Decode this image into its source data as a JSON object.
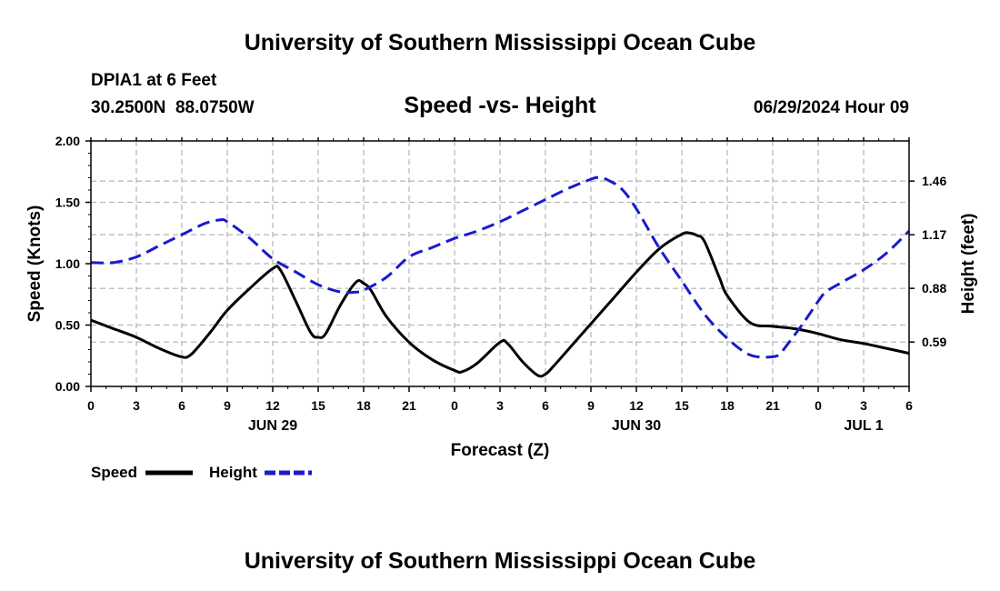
{
  "header": {
    "title": "University of Southern Mississippi Ocean Cube",
    "station": "DPIA1 at 6 Feet",
    "coords": "30.2500N  88.0750W",
    "subtitle": "Speed -vs- Height",
    "datetime": "06/29/2024 Hour 09",
    "footer_title": "University of Southern Mississippi Ocean Cube"
  },
  "legend": {
    "speed_label": "Speed",
    "height_label": "Height"
  },
  "colors": {
    "speed": "#000000",
    "height": "#1a1acc",
    "grid": "#b4b4b4"
  },
  "chart_data": {
    "type": "line",
    "title": "Speed -vs- Height",
    "xlabel": "Forecast (Z)",
    "ylabel": "Speed (Knots)",
    "y2label": "Height (feet)",
    "xlim": [
      0,
      54
    ],
    "ylim": [
      0,
      2.0
    ],
    "y2lim": [
      0.35,
      1.677
    ],
    "x_ticks": [
      0,
      3,
      6,
      9,
      12,
      15,
      18,
      21,
      24,
      27,
      30,
      33,
      36,
      39,
      42,
      45,
      48,
      51,
      54
    ],
    "x_tick_labels": [
      "0",
      "3",
      "6",
      "9",
      "12",
      "15",
      "18",
      "21",
      "0",
      "3",
      "6",
      "9",
      "12",
      "15",
      "18",
      "21",
      "0",
      "3",
      "6"
    ],
    "y_ticks": [
      0.0,
      0.5,
      1.0,
      1.5,
      2.0
    ],
    "y_tick_labels": [
      "0.00",
      "0.50",
      "1.00",
      "1.50",
      "2.00"
    ],
    "y2_ticks": [
      0.59,
      0.88,
      1.17,
      1.46
    ],
    "y2_tick_labels": [
      "0.59",
      "0.88",
      "1.17",
      "1.46"
    ],
    "date_labels": [
      {
        "x": 12,
        "label": "JUN 29"
      },
      {
        "x": 36,
        "label": "JUN 30"
      },
      {
        "x": 51,
        "label": "JUL 1"
      }
    ],
    "grid": true,
    "series": [
      {
        "name": "Speed",
        "axis": "left",
        "style": "solid",
        "x": [
          0,
          1.5,
          3,
          4.5,
          6,
          6.5,
          7,
          8,
          9,
          10.5,
          12,
          12.5,
          13.5,
          14.5,
          15,
          15.5,
          16.5,
          17.5,
          18,
          18.5,
          19.5,
          21,
          22.5,
          24,
          24.5,
          25.5,
          27,
          27.5,
          28.5,
          29.5,
          30,
          30.5,
          31.5,
          33,
          34.5,
          36,
          37.5,
          39,
          39.5,
          40,
          40.5,
          41.5,
          42,
          43.5,
          45,
          46.5,
          48,
          49.5,
          51,
          52.5,
          54
        ],
        "values": [
          0.54,
          0.47,
          0.4,
          0.31,
          0.24,
          0.25,
          0.31,
          0.46,
          0.62,
          0.8,
          0.96,
          0.95,
          0.7,
          0.44,
          0.4,
          0.43,
          0.67,
          0.85,
          0.84,
          0.78,
          0.57,
          0.36,
          0.22,
          0.13,
          0.12,
          0.19,
          0.36,
          0.35,
          0.2,
          0.09,
          0.1,
          0.16,
          0.3,
          0.51,
          0.72,
          0.93,
          1.12,
          1.24,
          1.25,
          1.23,
          1.18,
          0.88,
          0.74,
          0.52,
          0.49,
          0.47,
          0.43,
          0.38,
          0.35,
          0.31,
          0.27
        ]
      },
      {
        "name": "Height",
        "axis": "right",
        "style": "dashed",
        "x": [
          0,
          1.5,
          3,
          4.5,
          6,
          7.5,
          8.5,
          9,
          10.5,
          12,
          13.5,
          15,
          16.5,
          17.5,
          18,
          19.5,
          21,
          22.5,
          24,
          25.5,
          27,
          28.5,
          30,
          31.5,
          33,
          33.5,
          34,
          35,
          36,
          37.5,
          39,
          40.5,
          42,
          43.5,
          45,
          45.5,
          46,
          47,
          48,
          48.5,
          49.5,
          51,
          52.5,
          54
        ],
        "values": [
          1.02,
          1.02,
          1.05,
          1.11,
          1.17,
          1.23,
          1.25,
          1.24,
          1.15,
          1.04,
          0.97,
          0.9,
          0.86,
          0.86,
          0.87,
          0.94,
          1.05,
          1.1,
          1.15,
          1.19,
          1.24,
          1.3,
          1.36,
          1.42,
          1.47,
          1.48,
          1.47,
          1.42,
          1.31,
          1.1,
          0.92,
          0.74,
          0.61,
          0.52,
          0.51,
          0.53,
          0.58,
          0.69,
          0.81,
          0.86,
          0.91,
          0.98,
          1.07,
          1.19
        ]
      }
    ]
  }
}
